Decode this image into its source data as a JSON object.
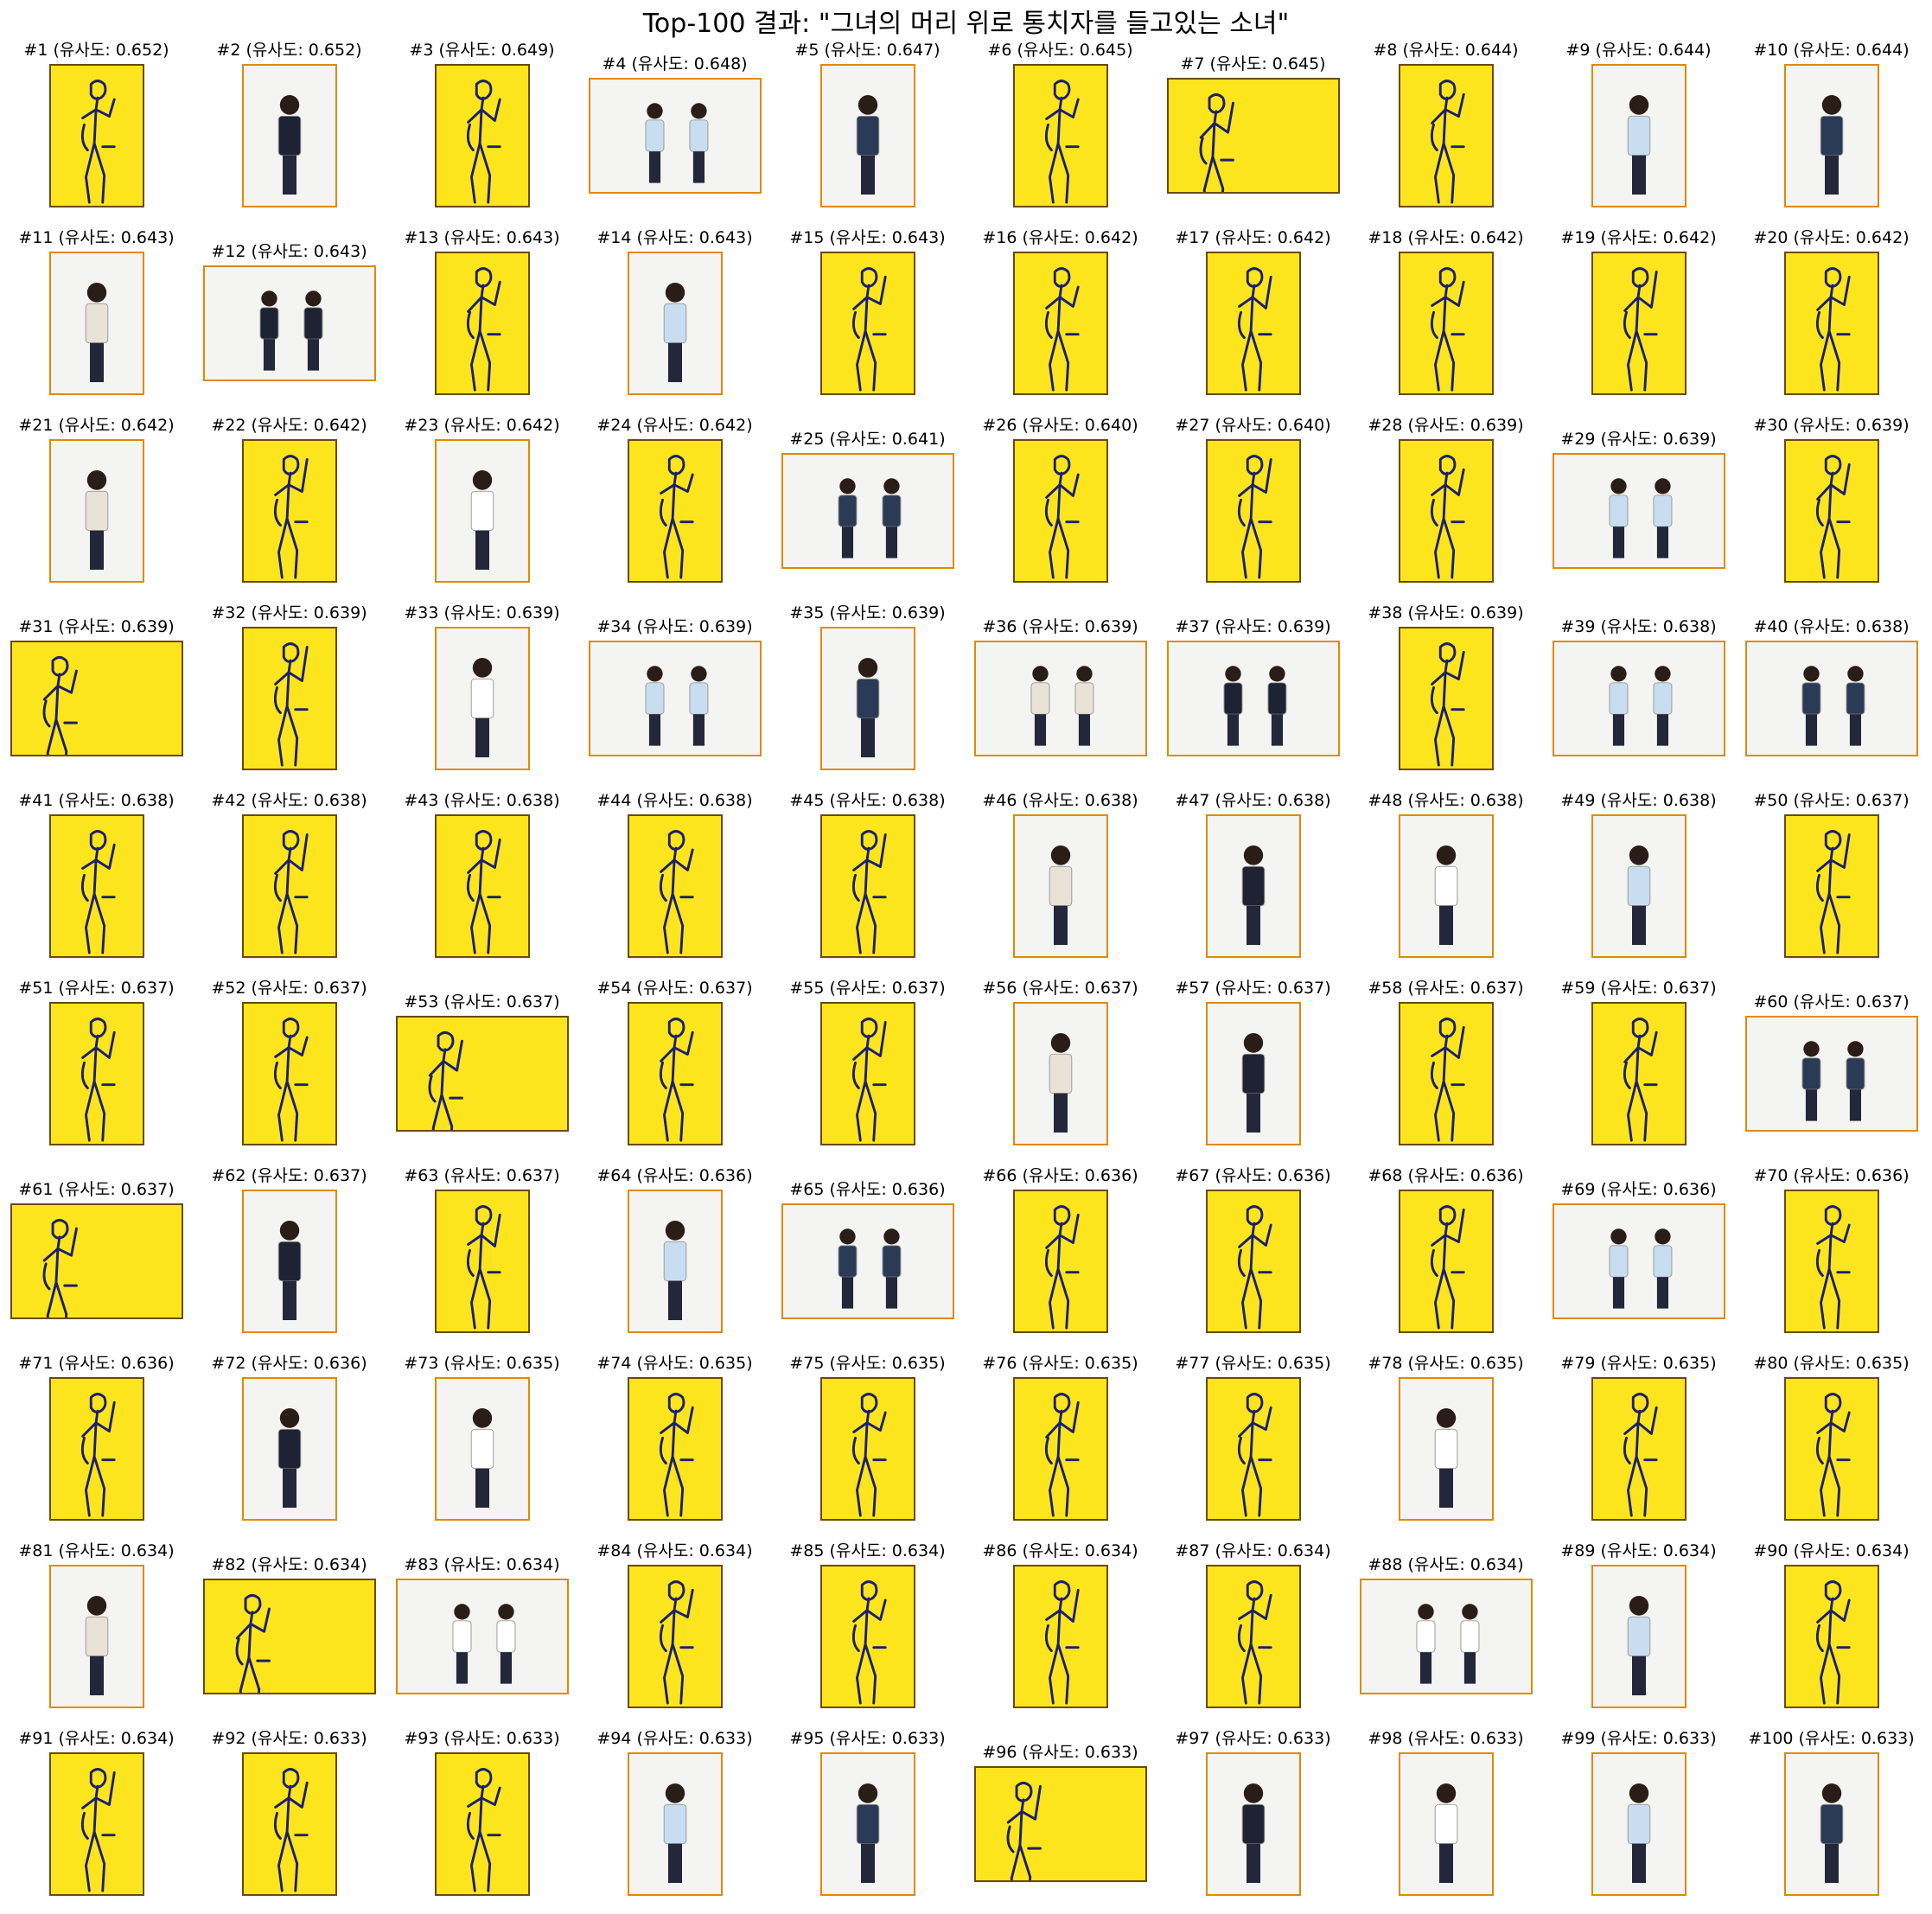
{
  "title": "Top-100 결과: \"그녀의 머리 위로 통치자를 들고있는 소녀\"",
  "colors": {
    "sketch_bg": "#fde51d",
    "sketch_line": "#1c1f6e",
    "photo_bg": "#f4f4f2",
    "photo_border": "#e08a00"
  },
  "results": [
    {
      "label": "#1 (유사도: 0.652)",
      "kind": "sketch",
      "shape": "portrait"
    },
    {
      "label": "#2 (유사도: 0.652)",
      "kind": "photo",
      "shape": "portrait"
    },
    {
      "label": "#3 (유사도: 0.649)",
      "kind": "sketch",
      "shape": "portrait"
    },
    {
      "label": "#4 (유사도: 0.648)",
      "kind": "photo",
      "shape": "landscape"
    },
    {
      "label": "#5 (유사도: 0.647)",
      "kind": "photo",
      "shape": "portrait"
    },
    {
      "label": "#6 (유사도: 0.645)",
      "kind": "sketch",
      "shape": "portrait"
    },
    {
      "label": "#7 (유사도: 0.645)",
      "kind": "sketch",
      "shape": "landscape"
    },
    {
      "label": "#8 (유사도: 0.644)",
      "kind": "sketch",
      "shape": "portrait"
    },
    {
      "label": "#9 (유사도: 0.644)",
      "kind": "photo",
      "shape": "portrait"
    },
    {
      "label": "#10 (유사도: 0.644)",
      "kind": "photo",
      "shape": "portrait"
    },
    {
      "label": "#11 (유사도: 0.643)",
      "kind": "photo",
      "shape": "portrait"
    },
    {
      "label": "#12 (유사도: 0.643)",
      "kind": "photo",
      "shape": "landscape"
    },
    {
      "label": "#13 (유사도: 0.643)",
      "kind": "sketch",
      "shape": "portrait"
    },
    {
      "label": "#14 (유사도: 0.643)",
      "kind": "photo",
      "shape": "portrait"
    },
    {
      "label": "#15 (유사도: 0.643)",
      "kind": "sketch",
      "shape": "portrait"
    },
    {
      "label": "#16 (유사도: 0.642)",
      "kind": "sketch",
      "shape": "portrait"
    },
    {
      "label": "#17 (유사도: 0.642)",
      "kind": "sketch",
      "shape": "portrait"
    },
    {
      "label": "#18 (유사도: 0.642)",
      "kind": "sketch",
      "shape": "portrait"
    },
    {
      "label": "#19 (유사도: 0.642)",
      "kind": "sketch",
      "shape": "portrait"
    },
    {
      "label": "#20 (유사도: 0.642)",
      "kind": "sketch",
      "shape": "portrait"
    },
    {
      "label": "#21 (유사도: 0.642)",
      "kind": "photo",
      "shape": "portrait"
    },
    {
      "label": "#22 (유사도: 0.642)",
      "kind": "sketch",
      "shape": "portrait"
    },
    {
      "label": "#23 (유사도: 0.642)",
      "kind": "photo",
      "shape": "portrait"
    },
    {
      "label": "#24 (유사도: 0.642)",
      "kind": "sketch",
      "shape": "portrait"
    },
    {
      "label": "#25 (유사도: 0.641)",
      "kind": "photo",
      "shape": "landscape"
    },
    {
      "label": "#26 (유사도: 0.640)",
      "kind": "sketch",
      "shape": "portrait"
    },
    {
      "label": "#27 (유사도: 0.640)",
      "kind": "sketch",
      "shape": "portrait"
    },
    {
      "label": "#28 (유사도: 0.639)",
      "kind": "sketch",
      "shape": "portrait"
    },
    {
      "label": "#29 (유사도: 0.639)",
      "kind": "photo",
      "shape": "landscape"
    },
    {
      "label": "#30 (유사도: 0.639)",
      "kind": "sketch",
      "shape": "portrait"
    },
    {
      "label": "#31 (유사도: 0.639)",
      "kind": "sketch",
      "shape": "landscape"
    },
    {
      "label": "#32 (유사도: 0.639)",
      "kind": "sketch",
      "shape": "portrait"
    },
    {
      "label": "#33 (유사도: 0.639)",
      "kind": "photo",
      "shape": "portrait"
    },
    {
      "label": "#34 (유사도: 0.639)",
      "kind": "photo",
      "shape": "landscape"
    },
    {
      "label": "#35 (유사도: 0.639)",
      "kind": "photo",
      "shape": "portrait"
    },
    {
      "label": "#36 (유사도: 0.639)",
      "kind": "photo",
      "shape": "landscape"
    },
    {
      "label": "#37 (유사도: 0.639)",
      "kind": "photo",
      "shape": "landscape"
    },
    {
      "label": "#38 (유사도: 0.639)",
      "kind": "sketch",
      "shape": "portrait"
    },
    {
      "label": "#39 (유사도: 0.638)",
      "kind": "photo",
      "shape": "landscape"
    },
    {
      "label": "#40 (유사도: 0.638)",
      "kind": "photo",
      "shape": "landscape"
    },
    {
      "label": "#41 (유사도: 0.638)",
      "kind": "sketch",
      "shape": "portrait"
    },
    {
      "label": "#42 (유사도: 0.638)",
      "kind": "sketch",
      "shape": "portrait"
    },
    {
      "label": "#43 (유사도: 0.638)",
      "kind": "sketch",
      "shape": "portrait"
    },
    {
      "label": "#44 (유사도: 0.638)",
      "kind": "sketch",
      "shape": "portrait"
    },
    {
      "label": "#45 (유사도: 0.638)",
      "kind": "sketch",
      "shape": "portrait"
    },
    {
      "label": "#46 (유사도: 0.638)",
      "kind": "photo",
      "shape": "portrait"
    },
    {
      "label": "#47 (유사도: 0.638)",
      "kind": "photo",
      "shape": "portrait"
    },
    {
      "label": "#48 (유사도: 0.638)",
      "kind": "photo",
      "shape": "portrait"
    },
    {
      "label": "#49 (유사도: 0.638)",
      "kind": "photo",
      "shape": "portrait"
    },
    {
      "label": "#50 (유사도: 0.637)",
      "kind": "sketch",
      "shape": "portrait"
    },
    {
      "label": "#51 (유사도: 0.637)",
      "kind": "sketch",
      "shape": "portrait"
    },
    {
      "label": "#52 (유사도: 0.637)",
      "kind": "sketch",
      "shape": "portrait"
    },
    {
      "label": "#53 (유사도: 0.637)",
      "kind": "sketch",
      "shape": "landscape"
    },
    {
      "label": "#54 (유사도: 0.637)",
      "kind": "sketch",
      "shape": "portrait"
    },
    {
      "label": "#55 (유사도: 0.637)",
      "kind": "sketch",
      "shape": "portrait"
    },
    {
      "label": "#56 (유사도: 0.637)",
      "kind": "photo",
      "shape": "portrait"
    },
    {
      "label": "#57 (유사도: 0.637)",
      "kind": "photo",
      "shape": "portrait"
    },
    {
      "label": "#58 (유사도: 0.637)",
      "kind": "sketch",
      "shape": "portrait"
    },
    {
      "label": "#59 (유사도: 0.637)",
      "kind": "sketch",
      "shape": "portrait"
    },
    {
      "label": "#60 (유사도: 0.637)",
      "kind": "photo",
      "shape": "landscape"
    },
    {
      "label": "#61 (유사도: 0.637)",
      "kind": "sketch",
      "shape": "landscape"
    },
    {
      "label": "#62 (유사도: 0.637)",
      "kind": "photo",
      "shape": "portrait"
    },
    {
      "label": "#63 (유사도: 0.637)",
      "kind": "sketch",
      "shape": "portrait"
    },
    {
      "label": "#64 (유사도: 0.636)",
      "kind": "photo",
      "shape": "portrait"
    },
    {
      "label": "#65 (유사도: 0.636)",
      "kind": "photo",
      "shape": "landscape"
    },
    {
      "label": "#66 (유사도: 0.636)",
      "kind": "sketch",
      "shape": "portrait"
    },
    {
      "label": "#67 (유사도: 0.636)",
      "kind": "sketch",
      "shape": "portrait"
    },
    {
      "label": "#68 (유사도: 0.636)",
      "kind": "sketch",
      "shape": "portrait"
    },
    {
      "label": "#69 (유사도: 0.636)",
      "kind": "photo",
      "shape": "landscape"
    },
    {
      "label": "#70 (유사도: 0.636)",
      "kind": "sketch",
      "shape": "portrait"
    },
    {
      "label": "#71 (유사도: 0.636)",
      "kind": "sketch",
      "shape": "portrait"
    },
    {
      "label": "#72 (유사도: 0.636)",
      "kind": "photo",
      "shape": "portrait"
    },
    {
      "label": "#73 (유사도: 0.635)",
      "kind": "photo",
      "shape": "portrait"
    },
    {
      "label": "#74 (유사도: 0.635)",
      "kind": "sketch",
      "shape": "portrait"
    },
    {
      "label": "#75 (유사도: 0.635)",
      "kind": "sketch",
      "shape": "portrait"
    },
    {
      "label": "#76 (유사도: 0.635)",
      "kind": "sketch",
      "shape": "portrait"
    },
    {
      "label": "#77 (유사도: 0.635)",
      "kind": "sketch",
      "shape": "portrait"
    },
    {
      "label": "#78 (유사도: 0.635)",
      "kind": "photo",
      "shape": "portrait"
    },
    {
      "label": "#79 (유사도: 0.635)",
      "kind": "sketch",
      "shape": "portrait"
    },
    {
      "label": "#80 (유사도: 0.635)",
      "kind": "sketch",
      "shape": "portrait"
    },
    {
      "label": "#81 (유사도: 0.634)",
      "kind": "photo",
      "shape": "portrait"
    },
    {
      "label": "#82 (유사도: 0.634)",
      "kind": "sketch",
      "shape": "landscape"
    },
    {
      "label": "#83 (유사도: 0.634)",
      "kind": "photo",
      "shape": "landscape"
    },
    {
      "label": "#84 (유사도: 0.634)",
      "kind": "sketch",
      "shape": "portrait"
    },
    {
      "label": "#85 (유사도: 0.634)",
      "kind": "sketch",
      "shape": "portrait"
    },
    {
      "label": "#86 (유사도: 0.634)",
      "kind": "sketch",
      "shape": "portrait"
    },
    {
      "label": "#87 (유사도: 0.634)",
      "kind": "sketch",
      "shape": "portrait"
    },
    {
      "label": "#88 (유사도: 0.634)",
      "kind": "photo",
      "shape": "landscape"
    },
    {
      "label": "#89 (유사도: 0.634)",
      "kind": "photo",
      "shape": "portrait"
    },
    {
      "label": "#90 (유사도: 0.634)",
      "kind": "sketch",
      "shape": "portrait"
    },
    {
      "label": "#91 (유사도: 0.634)",
      "kind": "sketch",
      "shape": "portrait"
    },
    {
      "label": "#92 (유사도: 0.633)",
      "kind": "sketch",
      "shape": "portrait"
    },
    {
      "label": "#93 (유사도: 0.633)",
      "kind": "sketch",
      "shape": "portrait"
    },
    {
      "label": "#94 (유사도: 0.633)",
      "kind": "photo",
      "shape": "portrait"
    },
    {
      "label": "#95 (유사도: 0.633)",
      "kind": "photo",
      "shape": "portrait"
    },
    {
      "label": "#96 (유사도: 0.633)",
      "kind": "sketch",
      "shape": "landscape"
    },
    {
      "label": "#97 (유사도: 0.633)",
      "kind": "photo",
      "shape": "portrait"
    },
    {
      "label": "#98 (유사도: 0.633)",
      "kind": "photo",
      "shape": "portrait"
    },
    {
      "label": "#99 (유사도: 0.633)",
      "kind": "photo",
      "shape": "portrait"
    },
    {
      "label": "#100 (유사도: 0.633)",
      "kind": "photo",
      "shape": "portrait"
    }
  ]
}
